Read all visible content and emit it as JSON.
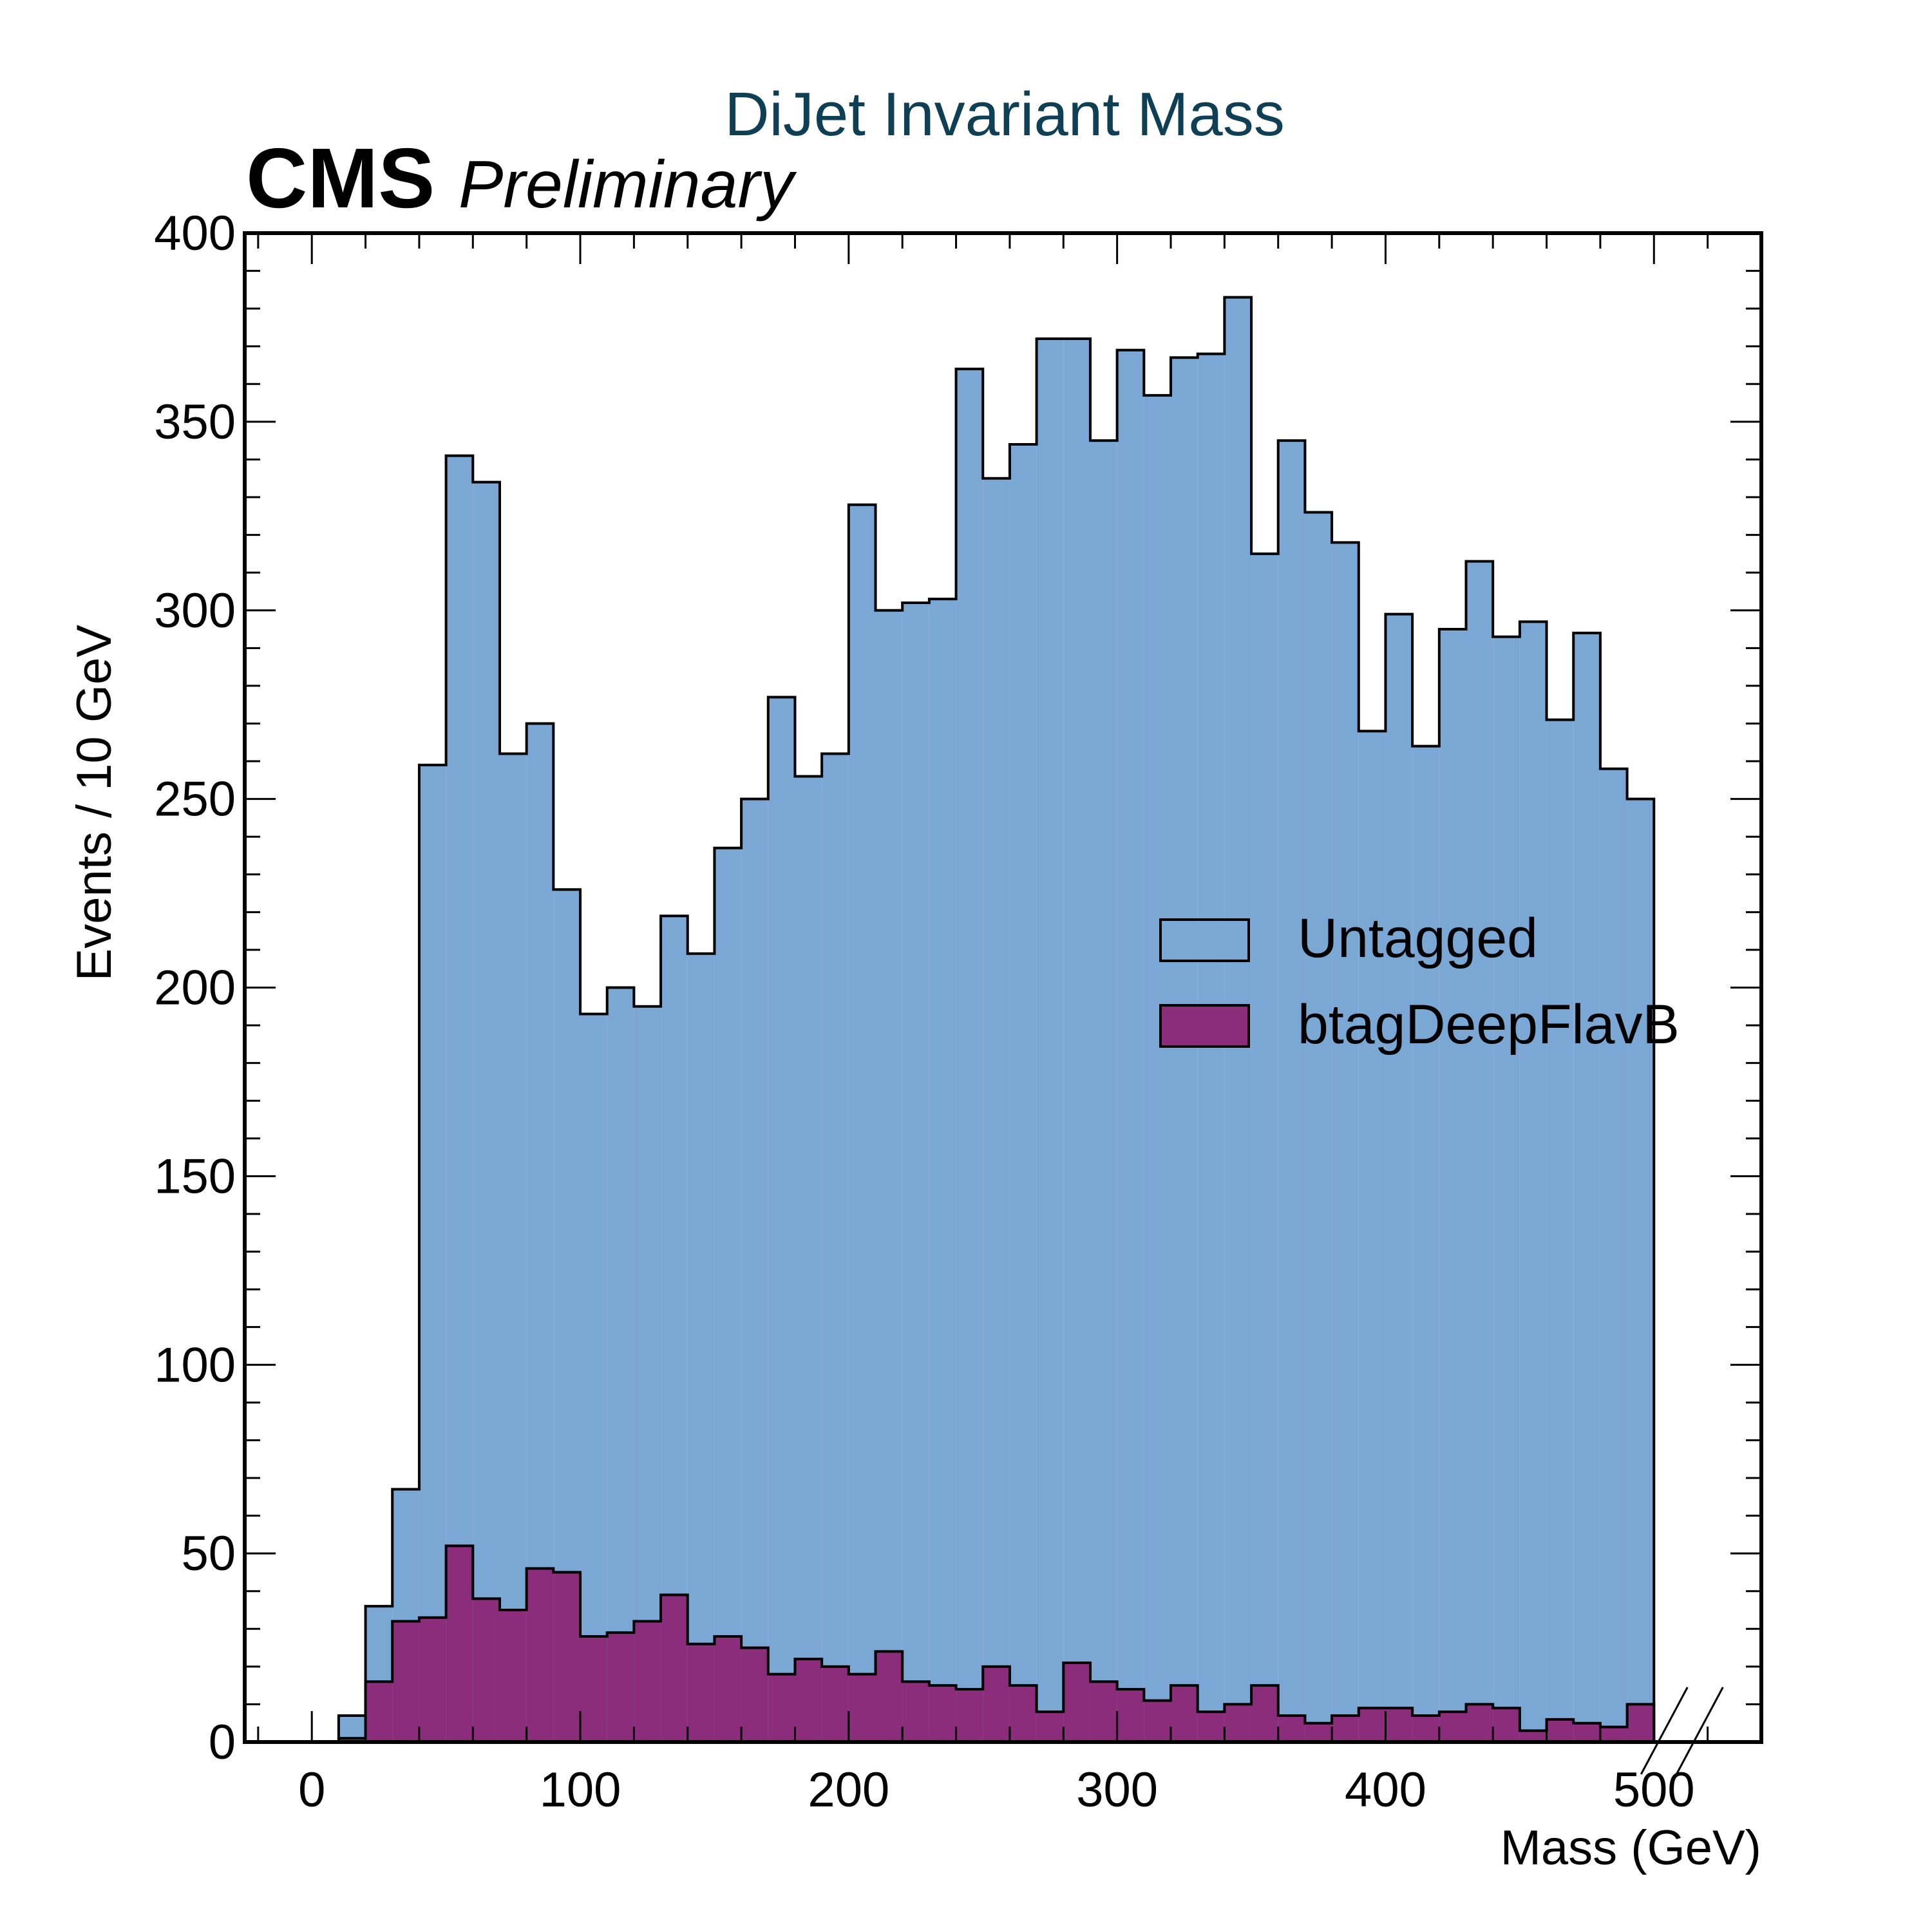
{
  "chart_data": {
    "type": "histogram",
    "title": "DiJet Invariant Mass",
    "experiment_label": "CMS",
    "status_label": "Preliminary",
    "xlabel": "Mass (GeV)",
    "ylabel": "Events / 10 GeV",
    "xlim": [
      -25,
      540
    ],
    "ylim": [
      0,
      400
    ],
    "x_ticks": [
      0,
      100,
      200,
      300,
      400,
      500
    ],
    "y_ticks": [
      0,
      50,
      100,
      150,
      200,
      250,
      300,
      350,
      400
    ],
    "bin_edges_start": 0,
    "bin_width": 10,
    "grid": false,
    "legend_position": "center-right",
    "overflow_marker": true,
    "series": [
      {
        "name": "Untagged",
        "color": "#7aa7d4",
        "values": [
          0,
          7,
          36,
          67,
          259,
          341,
          334,
          262,
          270,
          226,
          193,
          200,
          195,
          219,
          209,
          237,
          250,
          277,
          256,
          262,
          328,
          300,
          302,
          303,
          364,
          335,
          344,
          372,
          372,
          345,
          369,
          357,
          367,
          368,
          383,
          315,
          345,
          326,
          318,
          268,
          299,
          264,
          295,
          313,
          293,
          297,
          271,
          294,
          258,
          250
        ]
      },
      {
        "name": "btagDeepFlavB",
        "color": "#8b2d7b",
        "values": [
          0,
          1,
          16,
          32,
          33,
          52,
          38,
          35,
          46,
          45,
          28,
          29,
          32,
          39,
          26,
          28,
          25,
          18,
          22,
          20,
          18,
          24,
          16,
          15,
          14,
          20,
          15,
          8,
          21,
          16,
          14,
          11,
          15,
          8,
          10,
          15,
          7,
          5,
          7,
          9,
          9,
          7,
          8,
          10,
          9,
          3,
          6,
          5,
          4,
          10
        ]
      }
    ]
  }
}
